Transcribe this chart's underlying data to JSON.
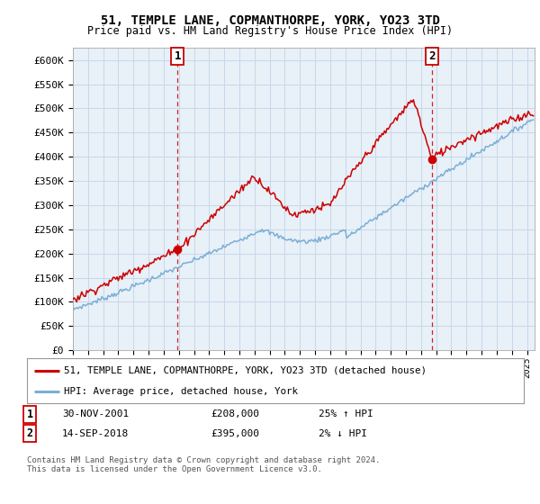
{
  "title_line1": "51, TEMPLE LANE, COPMANTHORPE, YORK, YO23 3TD",
  "title_line2": "Price paid vs. HM Land Registry's House Price Index (HPI)",
  "ylabel_ticks": [
    "£0",
    "£50K",
    "£100K",
    "£150K",
    "£200K",
    "£250K",
    "£300K",
    "£350K",
    "£400K",
    "£450K",
    "£500K",
    "£550K",
    "£600K"
  ],
  "ytick_values": [
    0,
    50000,
    100000,
    150000,
    200000,
    250000,
    300000,
    350000,
    400000,
    450000,
    500000,
    550000,
    600000
  ],
  "ylim": [
    0,
    625000
  ],
  "xlim_start": 1995.0,
  "xlim_end": 2025.5,
  "xtick_years": [
    1995,
    1996,
    1997,
    1998,
    1999,
    2000,
    2001,
    2002,
    2003,
    2004,
    2005,
    2006,
    2007,
    2008,
    2009,
    2010,
    2011,
    2012,
    2013,
    2014,
    2015,
    2016,
    2017,
    2018,
    2019,
    2020,
    2021,
    2022,
    2023,
    2024,
    2025
  ],
  "hpi_color": "#7bafd4",
  "price_color": "#cc0000",
  "vline_color": "#cc0000",
  "plot_bg_color": "#e8f0f8",
  "marker1_x": 2001.917,
  "marker1_y": 208000,
  "marker2_x": 2018.708,
  "marker2_y": 395000,
  "marker1_label": "1",
  "marker2_label": "2",
  "legend_line1": "51, TEMPLE LANE, COPMANTHORPE, YORK, YO23 3TD (detached house)",
  "legend_line2": "HPI: Average price, detached house, York",
  "table_row1": [
    "1",
    "30-NOV-2001",
    "£208,000",
    "25% ↑ HPI"
  ],
  "table_row2": [
    "2",
    "14-SEP-2018",
    "£395,000",
    "2% ↓ HPI"
  ],
  "footnote": "Contains HM Land Registry data © Crown copyright and database right 2024.\nThis data is licensed under the Open Government Licence v3.0.",
  "bg_color": "#ffffff",
  "grid_color": "#c8d8e8"
}
